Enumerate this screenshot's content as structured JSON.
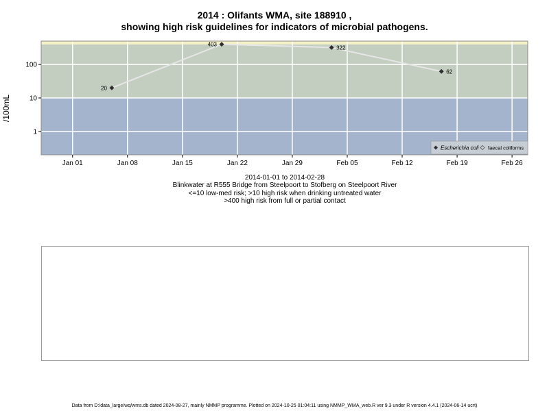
{
  "chart_data": {
    "type": "scatter",
    "title": "2014 : Olifants WMA, site 188910 ,",
    "subtitle": "showing high risk guidelines for indicators of microbial pathogens.",
    "ylabel": "/100mL",
    "y_scale": "log",
    "ylim": [
      0.2,
      500
    ],
    "xlim": [
      "2013-12-28",
      "2014-02-28"
    ],
    "y_ticks": [
      1,
      10,
      100
    ],
    "y_tick_labels": [
      "1",
      "10",
      "100"
    ],
    "x_ticks": [
      "2014-01-01",
      "2014-01-08",
      "2014-01-15",
      "2014-01-22",
      "2014-01-29",
      "2014-02-05",
      "2014-02-12",
      "2014-02-19",
      "2014-02-26"
    ],
    "x_tick_labels": [
      "Jan 01",
      "Jan 08",
      "Jan 15",
      "Jan 22",
      "Jan 29",
      "Feb 05",
      "Feb 12",
      "Feb 19",
      "Feb 26"
    ],
    "bands": [
      {
        "from": 0.2,
        "to": 10,
        "color": "#a3b4cc"
      },
      {
        "from": 10,
        "to": 400,
        "color": "#c3cec0"
      },
      {
        "from": 400,
        "to": 500,
        "color": "#f5f1c6"
      }
    ],
    "grid": true,
    "legend_position": "bottom-right",
    "series": [
      {
        "name": "Escherichia coli",
        "marker": "filled-diamond",
        "color": "#2f2f2f",
        "line_color": "#e6e6e6",
        "x": [
          "2014-01-06",
          "2014-01-20",
          "2014-02-03",
          "2014-02-17"
        ],
        "y": [
          20,
          403,
          322,
          62
        ],
        "labels": [
          "20",
          "403",
          "322",
          "62"
        ]
      },
      {
        "name": "faecal coliforms",
        "marker": "open-diamond",
        "color": "#555555",
        "x": [],
        "y": []
      }
    ]
  },
  "subtext": {
    "date_range": "2014-01-01 to 2014-02-28",
    "location": "Blinkwater at R555 Bridge from Steelpoort to Stofberg on Steelpoort River",
    "guideline_1": "<=10 low-med risk; >10 high risk when drinking untreated water",
    "guideline_2": ">400 high risk from full or partial contact"
  },
  "footer": "Data from D:/data_large/wq/wms.db dated 2024-08-27, mainly NMMP programme. Plotted on 2024-10-25 01:04:11 using NMMP_WMA_web.R ver 9.3 under R version 4.4.1 (2024-06-14 ucrt)"
}
